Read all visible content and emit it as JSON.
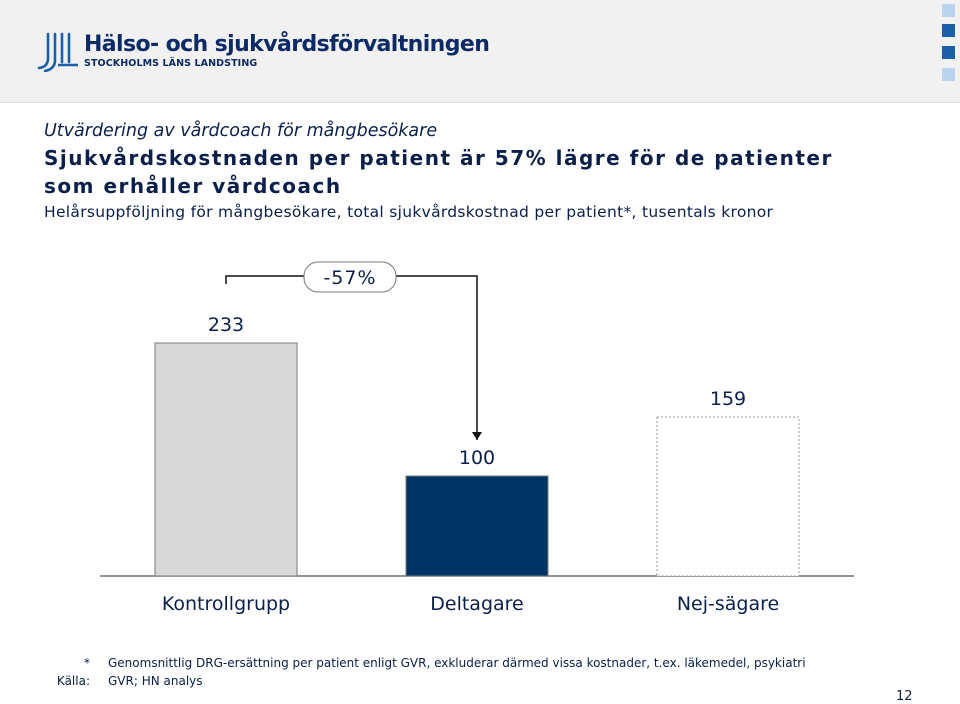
{
  "header": {
    "org_name": "Hälso- och sjukvårdsförvaltningen",
    "org_sub": "STOCKHOLMS LÄNS LANDSTING"
  },
  "kicker": "Utvärdering av vårdcoach för mångbesökare",
  "headline_line1": "Sjukvårdskostnaden per patient är 57% lägre för de patienter",
  "headline_line2": "som erhåller vårdcoach",
  "subtitle": "Helårsuppföljning för mångbesökare, total sjukvårdskostnad per patient*, tusentals kronor",
  "chart_data": {
    "type": "bar",
    "categories": [
      "Kontrollgrupp",
      "Deltagare",
      "Nej-sägare"
    ],
    "values": [
      233,
      100,
      159
    ],
    "value_labels": [
      "233",
      "100",
      "159"
    ],
    "bar_colors": [
      "#d9d9d9",
      "#003366",
      "#ffffff"
    ],
    "bar_borders": [
      "solid",
      "solid",
      "dashed"
    ],
    "annotation": "-57%",
    "annotation_from": "Kontrollgrupp",
    "annotation_to": "Deltagare",
    "ylim": [
      0,
      260
    ],
    "title": "",
    "xlabel": "",
    "ylabel": ""
  },
  "footnotes": [
    {
      "mark": "*",
      "text": "Genomsnittlig DRG-ersättning per patient enligt GVR, exkluderar därmed vissa kostnader, t.ex. läkemedel, psykiatri"
    },
    {
      "mark": "Källa:",
      "text": "GVR; HN analys"
    }
  ],
  "page_number": "12",
  "colors": {
    "text": "#0a1f4a",
    "brand": "#0c2a66",
    "accent": "#1b5fa8"
  }
}
